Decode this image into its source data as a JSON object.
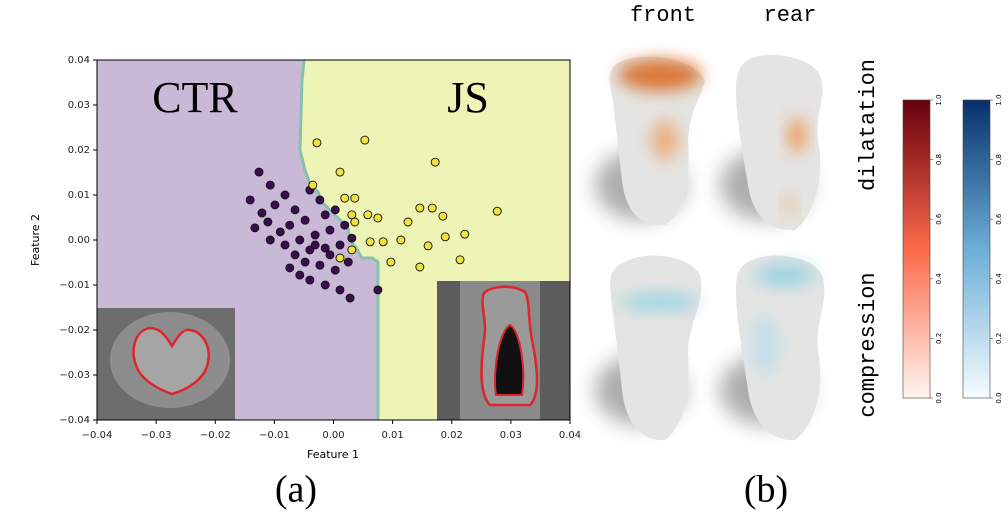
{
  "chart_data": {
    "type": "scatter",
    "x_label": "Feature 1",
    "y_label": "Feature 2",
    "annotations": [
      "CTR",
      "JS"
    ],
    "region_colors": [
      "#c9b8d6",
      "#eef3b6"
    ],
    "series": [
      {
        "color": "#3a0d4f",
        "x": [
          -0.0126,
          -0.0107,
          -0.0141,
          -0.0121,
          -0.0099,
          -0.0082,
          -0.0065,
          -0.004,
          -0.0023,
          -0.0014,
          0.0003,
          -0.0048,
          -0.0074,
          -0.009,
          -0.0111,
          -0.0133,
          -0.0057,
          -0.0031,
          -0.0006,
          0.0019,
          -0.004,
          -0.0014,
          0.0011,
          0.0031,
          -0.0065,
          -0.0082,
          -0.0107,
          -0.0048,
          -0.0023,
          0.0003,
          0.0025,
          -0.004,
          -0.0014,
          0.0011,
          0.0028,
          0.0075,
          -0.0057,
          -0.0074,
          -0.0006,
          -0.0031
        ],
        "values": [
          0.0151,
          0.0122,
          0.0089,
          0.006,
          0.0078,
          0.01,
          0.0067,
          0.0111,
          0.0089,
          0.0056,
          0.0067,
          0.0044,
          0.0033,
          0.0018,
          0.004,
          0.0027,
          0.0,
          0.0011,
          0.0022,
          0.0033,
          -0.0022,
          -0.0018,
          -0.0011,
          0.0004,
          -0.0033,
          -0.0011,
          0.0,
          -0.0049,
          -0.0056,
          -0.0067,
          -0.0049,
          -0.0089,
          -0.01,
          -0.0111,
          -0.0129,
          -0.0111,
          -0.0078,
          -0.0062,
          -0.0033,
          -0.0011
        ]
      },
      {
        "color": "#f1e33f",
        "x": [
          -0.0028,
          0.0053,
          0.0011,
          0.0172,
          -0.0035,
          0.0019,
          0.0036,
          0.0031,
          0.0058,
          0.0075,
          0.0126,
          0.0146,
          0.0167,
          0.0185,
          0.0277,
          0.0036,
          0.0062,
          0.0084,
          0.0114,
          0.0189,
          0.0222,
          0.016,
          0.0097,
          0.0146,
          0.0214,
          0.0031,
          0.0011
        ],
        "values": [
          0.0216,
          0.0222,
          0.0151,
          0.0173,
          0.0122,
          0.0093,
          0.0093,
          0.0056,
          0.0056,
          0.0049,
          0.004,
          0.0071,
          0.0071,
          0.0053,
          0.0064,
          0.004,
          -0.0004,
          -0.0004,
          0.0,
          0.0007,
          0.0013,
          -0.0013,
          -0.0049,
          -0.006,
          -0.0044,
          -0.0022,
          -0.004
        ]
      }
    ],
    "xlim": [
      -0.04,
      0.04
    ],
    "ylim": [
      -0.04,
      0.04
    ],
    "xticks": [
      {
        "value": -0.04,
        "label": "−0.04"
      },
      {
        "value": -0.03,
        "label": "−0.03"
      },
      {
        "value": -0.02,
        "label": "−0.02"
      },
      {
        "value": -0.01,
        "label": "−0.01"
      },
      {
        "value": 0,
        "label": "0.00"
      },
      {
        "value": 0.01,
        "label": "0.01"
      },
      {
        "value": 0.02,
        "label": "0.02"
      },
      {
        "value": 0.03,
        "label": "0.03"
      },
      {
        "value": 0.04,
        "label": "0.04"
      }
    ],
    "yticks": [
      {
        "value": -0.04,
        "label": "−0.04"
      },
      {
        "value": -0.03,
        "label": "−0.03"
      },
      {
        "value": -0.02,
        "label": "−0.02"
      },
      {
        "value": -0.01,
        "label": "−0.01"
      },
      {
        "value": 0,
        "label": "0.00"
      },
      {
        "value": 0.01,
        "label": "0.01"
      },
      {
        "value": 0.02,
        "label": "0.02"
      },
      {
        "value": 0.03,
        "label": "0.03"
      },
      {
        "value": 0.04,
        "label": "0.04"
      }
    ],
    "panel_label": "(a)"
  },
  "panel_b": {
    "panel_label": "(b)",
    "columns": [
      "front",
      "rear"
    ],
    "rows": [
      "dilatation",
      "compression"
    ],
    "colorbars": [
      {
        "colors": [
          "#fff5f0",
          "#fb6a4a",
          "#67000d"
        ],
        "lim": [
          0,
          1
        ],
        "ticks": [
          {
            "value": 0,
            "label": "0.0"
          },
          {
            "value": 0.2,
            "label": "0.2"
          },
          {
            "value": 0.4,
            "label": "0.4"
          },
          {
            "value": 0.6,
            "label": "0.6"
          },
          {
            "value": 0.8,
            "label": "0.8"
          },
          {
            "value": 1,
            "label": "1.0"
          }
        ]
      },
      {
        "colors": [
          "#f7fbff",
          "#6baed6",
          "#08306b"
        ],
        "lim": [
          0,
          1
        ],
        "ticks": [
          {
            "value": 0,
            "label": "0.0"
          },
          {
            "value": 0.2,
            "label": "0.2"
          },
          {
            "value": 0.4,
            "label": "0.4"
          },
          {
            "value": 0.6,
            "label": "0.6"
          },
          {
            "value": 0.8,
            "label": "0.8"
          },
          {
            "value": 1,
            "label": "1.0"
          }
        ]
      }
    ]
  }
}
